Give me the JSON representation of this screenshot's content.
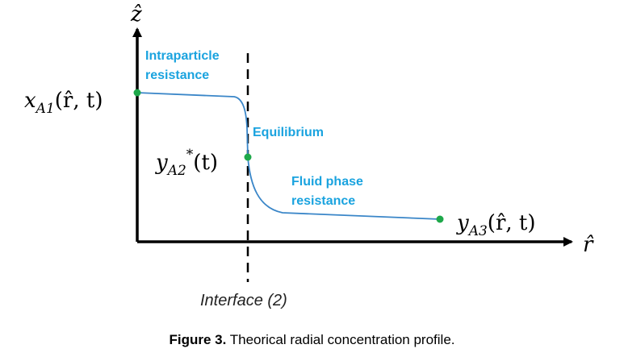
{
  "axes": {
    "z_label": "ẑ",
    "r_label": "r̂"
  },
  "labels": {
    "intraparticle_line1": "Intraparticle",
    "intraparticle_line2": "resistance",
    "equilibrium": "Equilibrium",
    "fluid_line1": "Fluid phase",
    "fluid_line2": "resistance",
    "interface": "Interface (2)"
  },
  "math": {
    "xA1": {
      "base": "x",
      "sub": "A1",
      "args": "(r̂, t)"
    },
    "yA2": {
      "base": "y",
      "sub": "A2",
      "sup": "*",
      "args": "(t)"
    },
    "yA3": {
      "base": "y",
      "sub": "A3",
      "args": "(r̂, t)"
    }
  },
  "caption": {
    "bold": "Figure 3.",
    "text": " Theorical radial concentration profile."
  },
  "colors": {
    "curve": "#3a86c8",
    "label": "#1aa3df",
    "point": "#1ea84a",
    "axis": "#000000"
  }
}
